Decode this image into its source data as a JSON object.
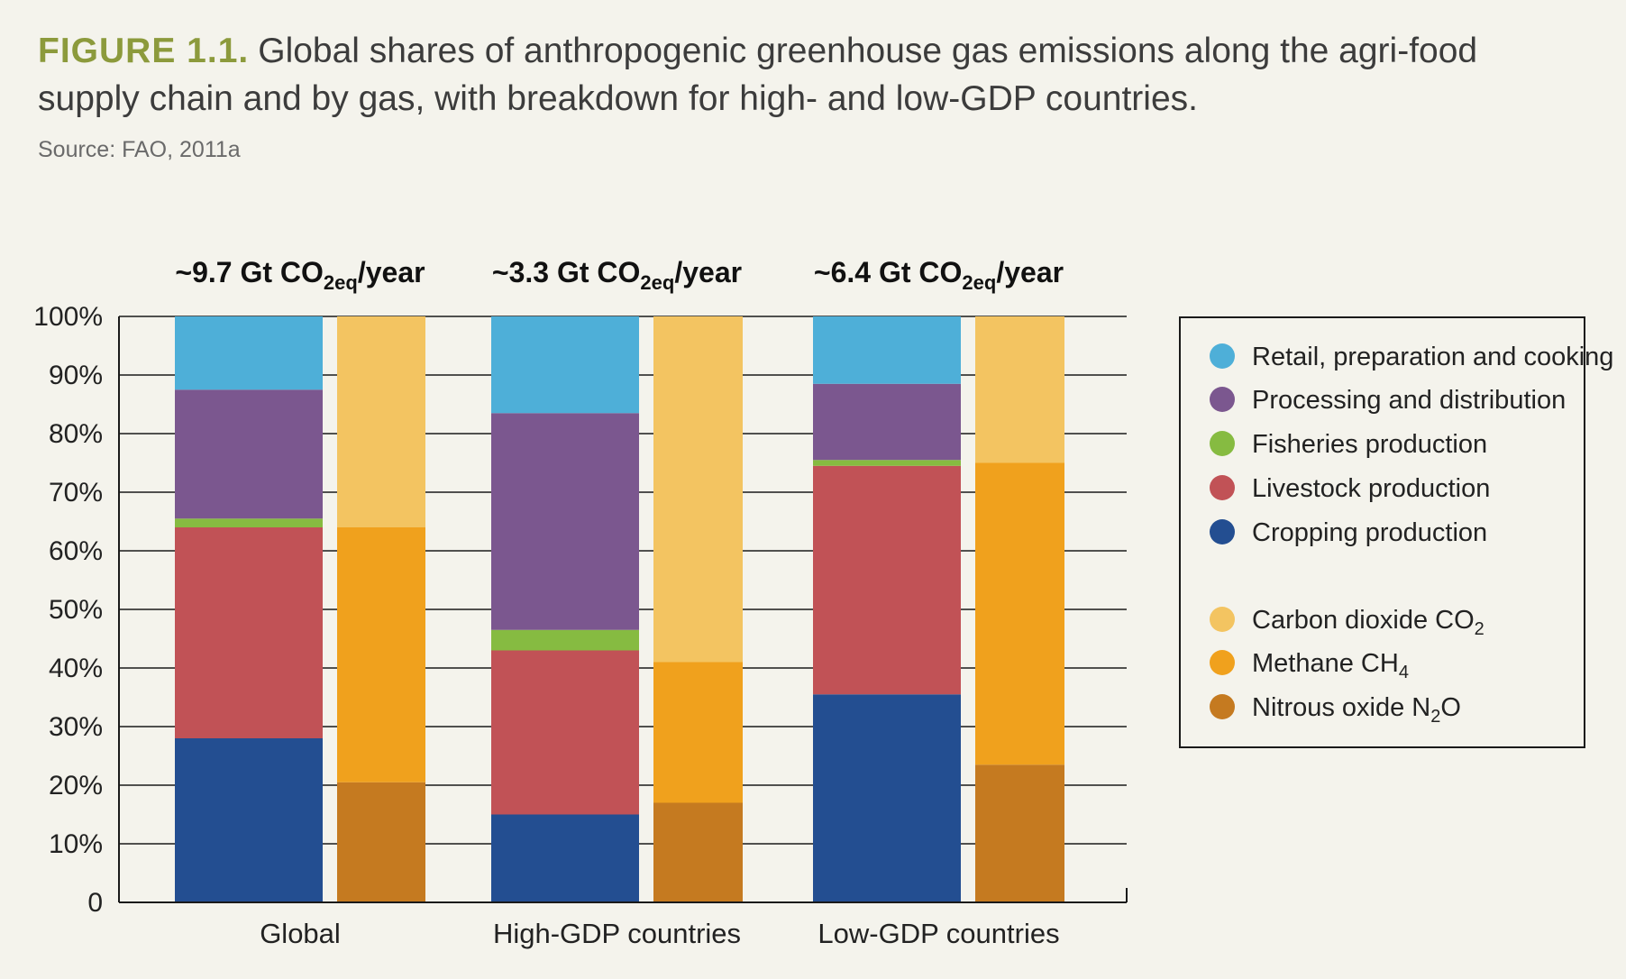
{
  "figure": {
    "label": "FIGURE 1.1.",
    "title": "Global shares of anthropogenic greenhouse gas emissions along the agri-food supply chain and by gas, with breakdown for high- and low-GDP countries.",
    "source": "Source: FAO, 2011a"
  },
  "colors": {
    "retail": "#4eafd8",
    "processing": "#7b578f",
    "fisheries": "#86bb41",
    "livestock": "#c15256",
    "cropping": "#234e91",
    "co2": "#f3c461",
    "ch4": "#f0a11d",
    "n2o": "#c57a20"
  },
  "chart_data": {
    "type": "bar",
    "stacked": true,
    "grid": true,
    "legend_position": "right",
    "ylim": [
      0,
      100
    ],
    "yticks": [
      "0",
      "10%",
      "20%",
      "30%",
      "40%",
      "50%",
      "60%",
      "70%",
      "80%",
      "90%",
      "100%"
    ],
    "categories": [
      "Global",
      "High-GDP countries",
      "Low-GDP countries"
    ],
    "totals": [
      {
        "prefix": "~9.7 Gt CO",
        "sub": "2eq",
        "suffix": "/year"
      },
      {
        "prefix": "~3.3 Gt CO",
        "sub": "2eq",
        "suffix": "/year"
      },
      {
        "prefix": "~6.4 Gt CO",
        "sub": "2eq",
        "suffix": "/year"
      }
    ],
    "supply_chain_series": [
      {
        "key": "cropping",
        "name": "Cropping production",
        "values": [
          28,
          15,
          35.5
        ]
      },
      {
        "key": "livestock",
        "name": "Livestock production",
        "values": [
          36,
          28,
          39
        ]
      },
      {
        "key": "fisheries",
        "name": "Fisheries production",
        "values": [
          1.5,
          3.5,
          1
        ]
      },
      {
        "key": "processing",
        "name": "Processing and distribution",
        "values": [
          22,
          37,
          13
        ]
      },
      {
        "key": "retail",
        "name": "Retail, preparation and cooking",
        "values": [
          12.5,
          16.5,
          11.5
        ]
      }
    ],
    "gas_series": [
      {
        "key": "n2o",
        "name": "Nitrous oxide N",
        "sub": "2",
        "tail": "O",
        "values": [
          20.5,
          17,
          23.5
        ]
      },
      {
        "key": "ch4",
        "name": "Methane CH",
        "sub": "4",
        "tail": "",
        "values": [
          43.5,
          24,
          51.5
        ]
      },
      {
        "key": "co2",
        "name": "Carbon dioxide CO",
        "sub": "2",
        "tail": "",
        "values": [
          36,
          59,
          25
        ]
      }
    ],
    "legend": [
      {
        "key": "retail",
        "name": "Retail, preparation and cooking"
      },
      {
        "key": "processing",
        "name": "Processing and distribution"
      },
      {
        "key": "fisheries",
        "name": "Fisheries production"
      },
      {
        "key": "livestock",
        "name": "Livestock production"
      },
      {
        "key": "cropping",
        "name": "Cropping production"
      },
      {
        "key": "co2",
        "name": "Carbon dioxide CO",
        "sub": "2",
        "tail": ""
      },
      {
        "key": "ch4",
        "name": "Methane CH",
        "sub": "4",
        "tail": ""
      },
      {
        "key": "n2o",
        "name": "Nitrous oxide N",
        "sub": "2",
        "tail": "O"
      }
    ]
  }
}
